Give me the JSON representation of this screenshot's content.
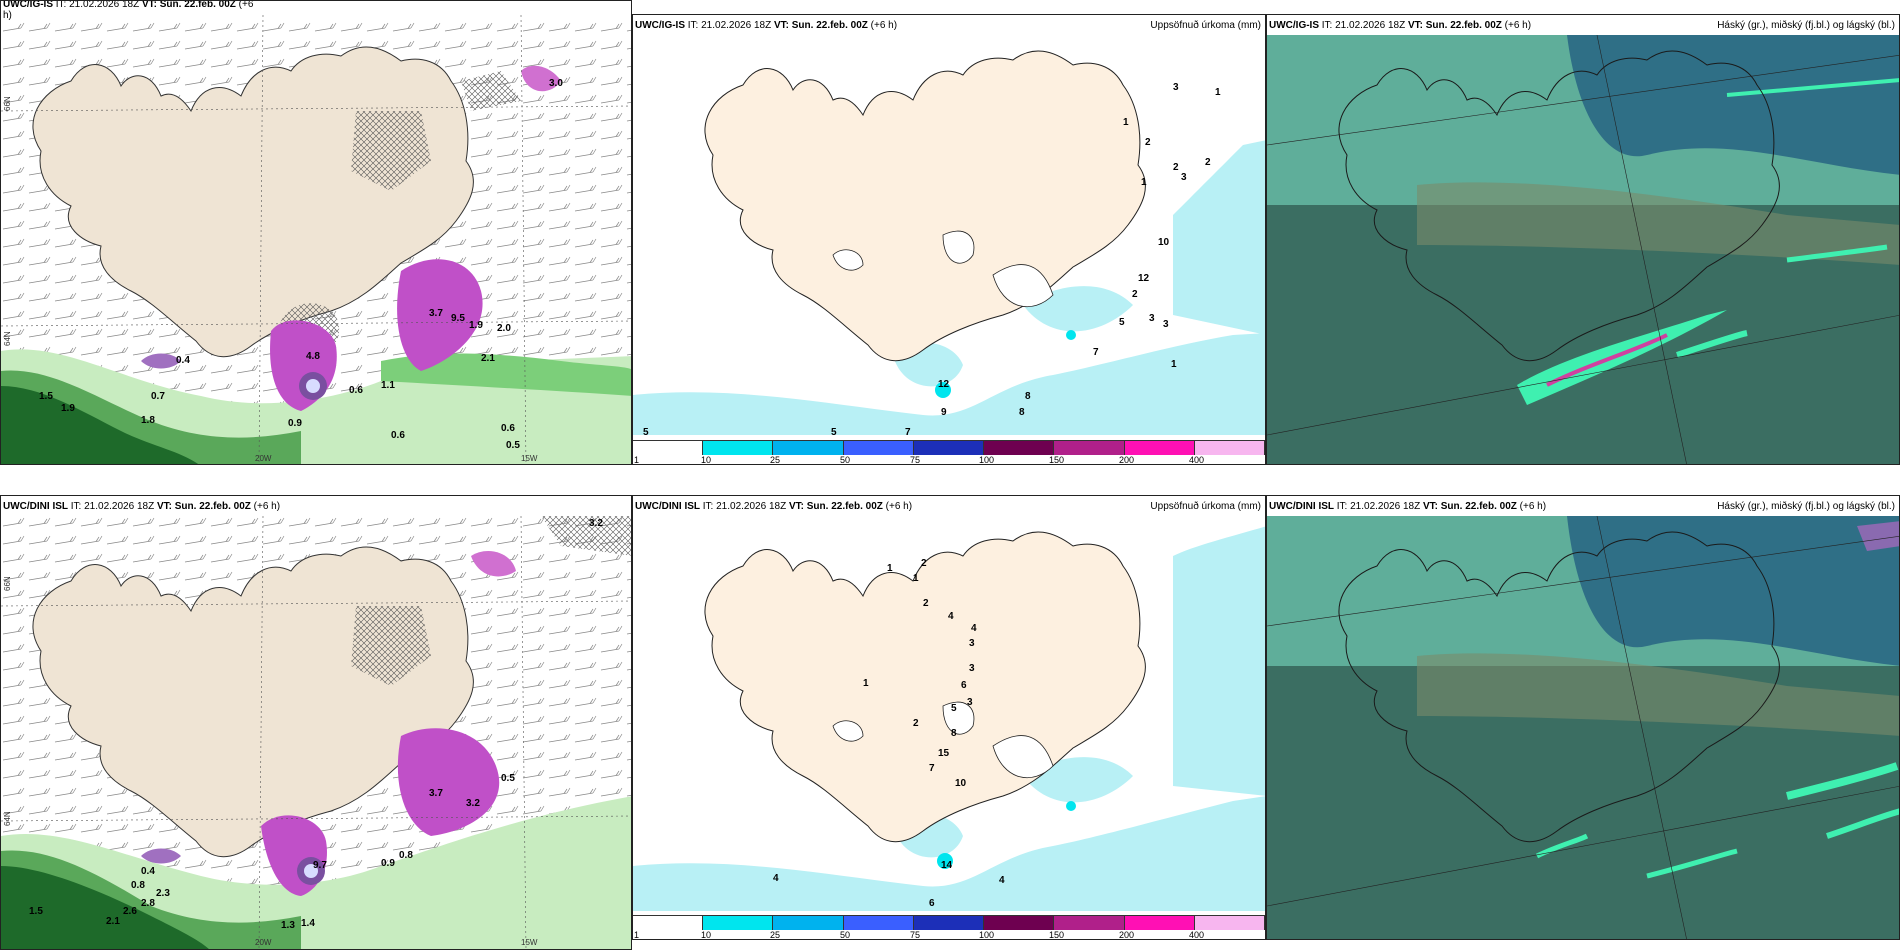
{
  "panels": {
    "p1": {
      "model": "UWC/IG-IS",
      "it": "IT: 21.02.2026 18Z",
      "vt": "VT: Sun. 22.feb. 00Z",
      "lead": "(+6",
      "lead2": "h)"
    },
    "p2": {
      "model": "UWC/IG-IS",
      "it": "IT: 21.02.2026 18Z",
      "vt": "VT: Sun. 22.feb. 00Z",
      "lead": "(+6 h)",
      "right": "Uppsöfnuð úrkoma (mm)"
    },
    "p3": {
      "model": "UWC/IG-IS",
      "it": "IT: 21.02.2026 18Z",
      "vt": "VT: Sun. 22.feb. 00Z",
      "lead": "(+6 h)",
      "right": "Háský (gr.), miðský (fj.bl.) og lágský (bl.)"
    },
    "p4": {
      "model": "UWC/DINI ISL",
      "it": "IT: 21.02.2026 18Z",
      "vt": "VT: Sun. 22.feb. 00Z",
      "lead": "(+6 h)"
    },
    "p5": {
      "model": "UWC/DINI ISL",
      "it": "IT: 21.02.2026 18Z",
      "vt": "VT: Sun. 22.feb. 00Z",
      "lead": "(+6 h)",
      "right": "Uppsöfnuð úrkoma (mm)"
    },
    "p6": {
      "model": "UWC/DINI ISL",
      "it": "IT: 21.02.2026 18Z",
      "vt": "VT: Sun. 22.feb. 00Z",
      "lead": "(+6 h)",
      "right": "Háský (gr.), miðský (fj.bl.) og lágský (bl.)"
    }
  },
  "axes": {
    "lat66": "66N",
    "lat64": "64N",
    "lon20": "20W",
    "lon15": "15W"
  },
  "legend": {
    "labels": [
      "1",
      "10",
      "25",
      "50",
      "75",
      "100",
      "150",
      "200",
      "400"
    ],
    "colors": [
      "#ffffff",
      "#00e5ee",
      "#00b2ee",
      "#3a5fff",
      "#1c2fb8",
      "#6e0050",
      "#b0208a",
      "#ff10b4",
      "#f7b6ef"
    ]
  },
  "precip_labels_top": [
    "5",
    "5",
    "7",
    "8",
    "9",
    "12",
    "1",
    "2",
    "3",
    "1",
    "2",
    "3",
    "2",
    "1",
    "10",
    "12",
    "2",
    "3",
    "5",
    "7",
    "3",
    "8",
    "1"
  ],
  "precip_labels_bottom": [
    "4",
    "4",
    "6",
    "14",
    "1",
    "1",
    "2",
    "2",
    "4",
    "3",
    "4",
    "6",
    "3",
    "5",
    "2",
    "8",
    "15",
    "10",
    "7",
    "1",
    "3"
  ],
  "wind_labels_top": [
    "3.0",
    "1.5",
    "1.9",
    "0.7",
    "0.4",
    "1.8",
    "4.8",
    "0.9",
    "0.6",
    "1.1",
    "3.7",
    "9.5",
    "1.9",
    "2.0",
    "2.1",
    "0.6",
    "0.6",
    "0.5"
  ],
  "wind_labels_bottom": [
    "3.2",
    "0.4",
    "0.8",
    "1.5",
    "2.1",
    "2.6",
    "2.8",
    "2.3",
    "1.3",
    "1.4",
    "9.7",
    "0.9",
    "0.8",
    "3.7",
    "3.2",
    "0.5"
  ]
}
